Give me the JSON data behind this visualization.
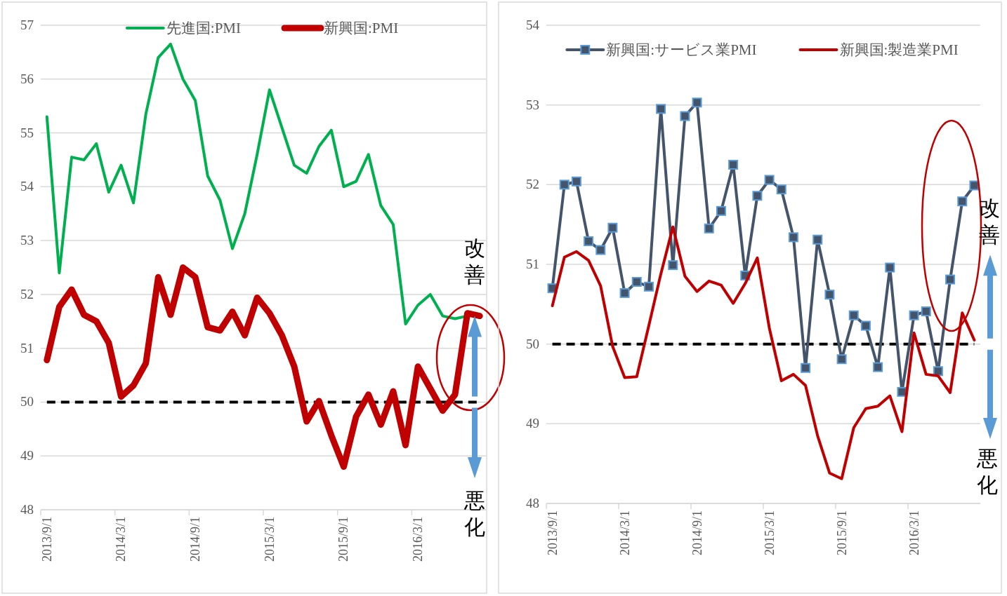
{
  "chart_data": [
    {
      "type": "line",
      "categories": [
        "2013/9/1",
        null,
        null,
        null,
        null,
        null,
        "2014/3/1",
        null,
        null,
        null,
        null,
        null,
        "2014/9/1",
        null,
        null,
        null,
        null,
        null,
        "2015/3/1",
        null,
        null,
        null,
        null,
        null,
        "2015/9/1",
        null,
        null,
        null,
        null,
        null,
        "2016/3/1",
        null,
        null,
        null,
        null,
        null
      ],
      "series": [
        {
          "name": "先進国:PMI",
          "color": "#00b050",
          "values": [
            55.3,
            52.4,
            54.55,
            54.5,
            54.8,
            53.9,
            54.4,
            53.7,
            55.35,
            56.4,
            56.65,
            56.0,
            55.6,
            54.2,
            53.75,
            52.85,
            53.5,
            54.6,
            55.8,
            55.1,
            54.4,
            54.25,
            54.75,
            55.05,
            54.0,
            54.1,
            54.6,
            53.65,
            53.3,
            51.45,
            51.8,
            52.0,
            51.6,
            51.55,
            51.6,
            null
          ]
        },
        {
          "name": "新興国:PMI",
          "color": "#c00000",
          "values": [
            50.78,
            51.77,
            52.09,
            51.62,
            51.5,
            51.1,
            50.1,
            50.31,
            50.72,
            52.32,
            51.62,
            52.5,
            52.32,
            51.39,
            51.33,
            51.68,
            51.24,
            51.94,
            51.65,
            51.24,
            50.66,
            49.64,
            50.02,
            49.38,
            48.8,
            49.73,
            50.14,
            49.58,
            50.2,
            49.2,
            50.66,
            50.25,
            49.84,
            50.14,
            51.65,
            51.6
          ]
        }
      ],
      "ylim": [
        48,
        57
      ],
      "yticks": [
        48,
        49,
        50,
        51,
        52,
        53,
        54,
        55,
        56,
        57
      ],
      "grid": "y",
      "legend": "top",
      "marker": "none",
      "line_style": "solid",
      "ref_lines": [
        {
          "axis": "y",
          "value": 50,
          "color": "#000000",
          "line_style": "dashed"
        }
      ],
      "annotations": [
        "改善",
        "悪化"
      ]
    },
    {
      "type": "line",
      "categories": [
        "2013/9/1",
        null,
        null,
        null,
        null,
        null,
        "2014/3/1",
        null,
        null,
        null,
        null,
        null,
        "2014/9/1",
        null,
        null,
        null,
        null,
        null,
        "2015/3/1",
        null,
        null,
        null,
        null,
        null,
        "2015/9/1",
        null,
        null,
        null,
        null,
        null,
        "2016/3/1",
        null,
        null,
        null,
        null,
        null
      ],
      "series": [
        {
          "name": "新興国:サービス業PMI",
          "color": "#44546a",
          "marker": "square",
          "values": [
            50.7,
            52.0,
            52.04,
            51.29,
            51.18,
            51.46,
            50.64,
            50.78,
            50.72,
            52.95,
            50.99,
            52.86,
            53.03,
            51.45,
            51.67,
            52.25,
            50.86,
            51.86,
            52.06,
            51.94,
            51.34,
            49.7,
            51.31,
            50.62,
            49.81,
            50.36,
            50.23,
            49.71,
            50.96,
            49.4,
            50.36,
            50.41,
            49.66,
            50.81,
            51.79,
            51.99
          ]
        },
        {
          "name": "新興国:製造業PMI",
          "color": "#c00000",
          "marker": "none",
          "values": [
            50.48,
            51.09,
            51.16,
            51.05,
            50.73,
            49.97,
            49.58,
            49.59,
            50.23,
            50.88,
            51.47,
            50.85,
            50.66,
            50.79,
            50.74,
            50.51,
            50.76,
            51.08,
            50.2,
            49.54,
            49.62,
            49.48,
            48.85,
            48.38,
            48.31,
            48.95,
            49.19,
            49.22,
            49.35,
            48.9,
            50.14,
            49.62,
            49.6,
            49.39,
            50.39,
            50.05
          ]
        }
      ],
      "ylim": [
        48,
        54
      ],
      "yticks": [
        48,
        49,
        50,
        51,
        52,
        53,
        54
      ],
      "grid": "y",
      "legend": "top",
      "line_style": "solid",
      "ref_lines": [
        {
          "axis": "y",
          "value": 50,
          "color": "#000000",
          "line_style": "dashed"
        }
      ],
      "annotations": [
        "改善",
        "悪化"
      ]
    }
  ]
}
